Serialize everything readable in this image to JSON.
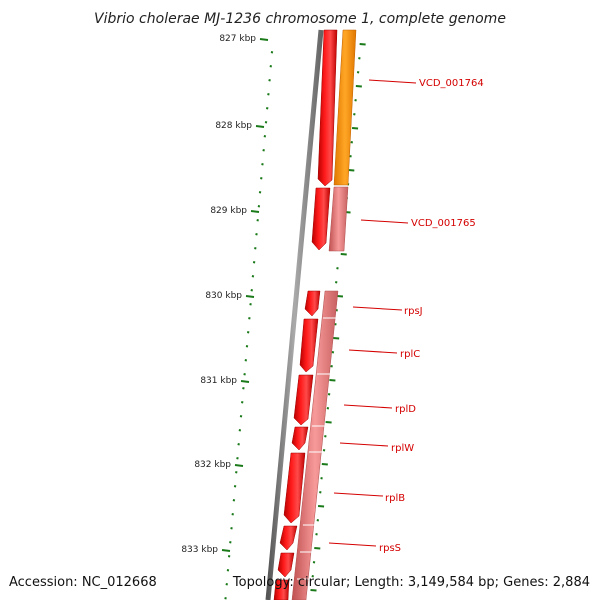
{
  "title": "Vibrio cholerae MJ-1236 chromosome 1, complete genome",
  "footer": {
    "accession": "Accession: NC_012668",
    "topology": "Topology: circular; Length: 3,149,584 bp; Genes: 2,884"
  },
  "ticks": [
    "827 kbp",
    "828 kbp",
    "829 kbp",
    "830 kbp",
    "831 kbp",
    "832 kbp",
    "833 kbp"
  ],
  "genes": [
    {
      "label": "VCD_001764",
      "strand": "forward-frame"
    },
    {
      "label": "VCD_001765",
      "strand": "forward-frame"
    },
    {
      "label": "rpsJ",
      "strand": "reverse"
    },
    {
      "label": "rplC",
      "strand": "reverse"
    },
    {
      "label": "rplD",
      "strand": "reverse"
    },
    {
      "label": "rplW",
      "strand": "reverse"
    },
    {
      "label": "rplB",
      "strand": "reverse"
    },
    {
      "label": "rpsS",
      "strand": "reverse"
    }
  ],
  "colors": {
    "gene_red": "#ff0000",
    "frame_orange": "#ff9900",
    "frame_pink": "#f08080",
    "backbone": "#808080",
    "gc_green": "#1a7a1a",
    "label_red": "#d40000"
  }
}
